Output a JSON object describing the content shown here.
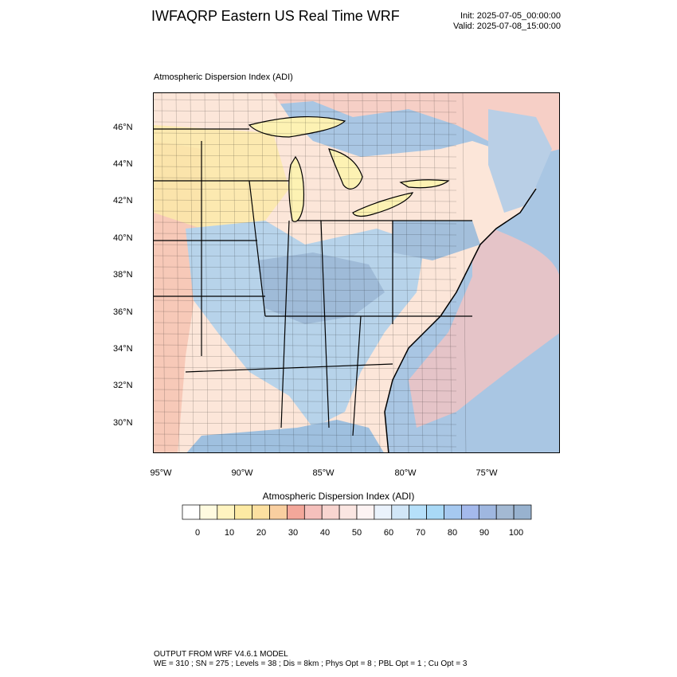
{
  "header": {
    "title": "IWFAQRP Eastern US Real Time WRF",
    "init": "Init: 2025-07-05_00:00:00",
    "valid": "Valid: 2025-07-08_15:00:00"
  },
  "plot": {
    "subtitle": "Atmospheric Dispersion Index   (ADI)",
    "lat_labels": [
      "46°N",
      "44°N",
      "42°N",
      "40°N",
      "38°N",
      "36°N",
      "34°N",
      "32°N",
      "30°N"
    ],
    "lon_labels": [
      "95°W",
      "90°W",
      "85°W",
      "80°W",
      "75°W"
    ],
    "colors": {
      "land_low": "#f7c9b8",
      "land_mid": "#fce6d9",
      "land_yellow": "#fbe9a8",
      "land_blue": "#b7d3ea",
      "land_dark_blue": "#9fbbd8",
      "ocean": "#a9c6e3",
      "lakes": "#fdf2b3"
    }
  },
  "colorbar": {
    "title": "Atmospheric Dispersion Index  (ADI)",
    "colors": [
      "#ffffff",
      "#fffbe0",
      "#fff4c0",
      "#fdeaa3",
      "#fce0a0",
      "#f9cfa0",
      "#f3a79a",
      "#f5c0bc",
      "#f8d5d0",
      "#fbe6e2",
      "#fdf3f3",
      "#eaf2fc",
      "#d1e6f7",
      "#b6e0fa",
      "#a9d9f6",
      "#a6c9f0",
      "#a4b9ec",
      "#9fb7e0",
      "#a3b9d3",
      "#98b2cf"
    ],
    "labels": [
      "0",
      "10",
      "20",
      "30",
      "40",
      "50",
      "60",
      "70",
      "80",
      "90",
      "100"
    ]
  },
  "footer": {
    "line1": "OUTPUT FROM WRF V4.6.1 MODEL",
    "line2": "WE = 310 ; SN = 275 ; Levels = 38 ; Dis = 8km ; Phys Opt = 8 ; PBL Opt = 1 ; Cu Opt = 3"
  }
}
